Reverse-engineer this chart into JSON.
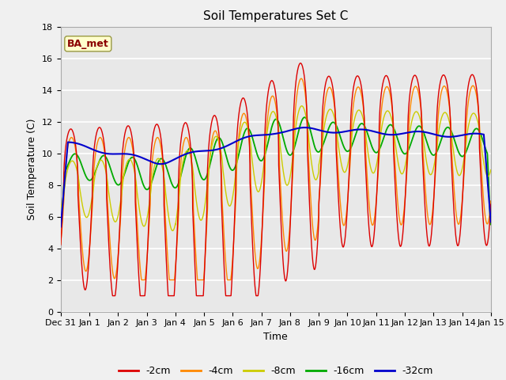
{
  "title": "Soil Temperatures Set C",
  "xlabel": "Time",
  "ylabel": "Soil Temperature (C)",
  "ylim": [
    0,
    18
  ],
  "yticks": [
    0,
    2,
    4,
    6,
    8,
    10,
    12,
    14,
    16,
    18
  ],
  "annotation": "BA_met",
  "colors": {
    "-2cm": "#dd0000",
    "-4cm": "#ff8800",
    "-8cm": "#cccc00",
    "-16cm": "#00aa00",
    "-32cm": "#0000cc"
  },
  "legend_labels": [
    "-2cm",
    "-4cm",
    "-8cm",
    "-16cm",
    "-32cm"
  ],
  "x_tick_labels": [
    "Dec 31",
    "Jan 1",
    "Jan 2",
    "Jan 3",
    "Jan 4",
    "Jan 5",
    "Jan 6",
    "Jan 7",
    "Jan 8",
    "Jan 9",
    "Jan 10",
    "Jan 11",
    "Jan 12",
    "Jan 13",
    "Jan 14",
    "Jan 15"
  ],
  "background_color": "#f0f0f0",
  "plot_bg_color": "#e8e8e8",
  "grid_color": "#ffffff",
  "title_fontsize": 11,
  "label_fontsize": 9,
  "tick_fontsize": 8
}
